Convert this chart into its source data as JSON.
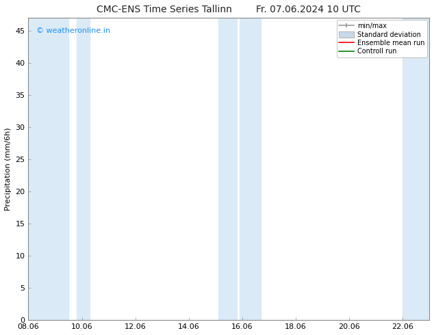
{
  "title_left": "CMC-ENS Time Series Tallinn",
  "title_right": "Fr. 07.06.2024 10 UTC",
  "ylabel": "Precipitation (mm/6h)",
  "xlabel_ticks": [
    "08.06",
    "10.06",
    "12.06",
    "14.06",
    "16.06",
    "18.06",
    "20.06",
    "22.06"
  ],
  "xtick_positions": [
    0,
    2,
    4,
    6,
    8,
    10,
    12,
    14
  ],
  "xlim": [
    0,
    15.0
  ],
  "ylim": [
    0,
    47
  ],
  "yticks": [
    0,
    5,
    10,
    15,
    20,
    25,
    30,
    35,
    40,
    45
  ],
  "shade_color": "#daeaf7",
  "shade_regions": [
    [
      0.0,
      1.5
    ],
    [
      1.8,
      2.3
    ],
    [
      7.1,
      7.8
    ],
    [
      7.9,
      8.7
    ],
    [
      14.0,
      15.0
    ]
  ],
  "watermark_text": "© weatheronline.in",
  "watermark_color": "#1e90ff",
  "legend_labels": [
    "min/max",
    "Standard deviation",
    "Ensemble mean run",
    "Controll run"
  ],
  "legend_minmax_color": "#999999",
  "legend_std_color": "#c8daea",
  "legend_ens_color": "#ff0000",
  "legend_ctrl_color": "#008000",
  "background_color": "#ffffff",
  "spine_color": "#888888",
  "tick_label_fontsize": 8,
  "axis_label_fontsize": 8,
  "title_fontsize": 10,
  "legend_fontsize": 7,
  "watermark_fontsize": 8
}
